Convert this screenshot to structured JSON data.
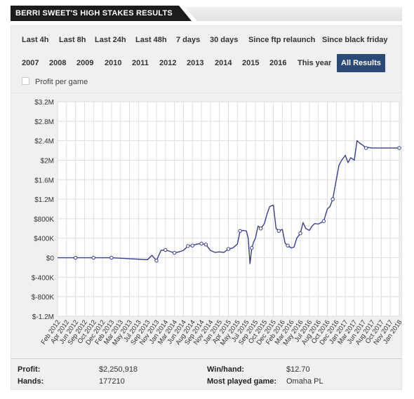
{
  "header": {
    "title": "BERRI SWEET'S HIGH STAKES RESULTS"
  },
  "filters": {
    "row1": [
      "Last 4h",
      "Last 8h",
      "Last 24h",
      "Last 48h",
      "7 days",
      "30 days",
      "Since ftp relaunch",
      "Since black friday"
    ],
    "row2": [
      "2007",
      "2008",
      "2009",
      "2010",
      "2011",
      "2012",
      "2013",
      "2014",
      "2015",
      "2016",
      "This year",
      "All Results"
    ],
    "active": "All Results",
    "profit_per_game_label": "Profit per game",
    "profit_per_game_checked": false
  },
  "stats": {
    "profit_label": "Profit:",
    "profit_value": "$2,250,918",
    "hands_label": "Hands:",
    "hands_value": "177210",
    "winhand_label": "Win/hand:",
    "winhand_value": "$12.70",
    "most_played_label": "Most played game:",
    "most_played_value": "Omaha PL"
  },
  "colors": {
    "line": "#3a3f8f",
    "active_filter": "#2c4a78",
    "header_bg": "#1c1c1c"
  },
  "chart_data": {
    "type": "line",
    "grid": true,
    "ylim": [
      -1200000,
      3200000
    ],
    "y_ticks": [
      3200000,
      2800000,
      2400000,
      2000000,
      1600000,
      1200000,
      800000,
      400000,
      0,
      -400000,
      -800000,
      -1200000
    ],
    "y_tick_labels": [
      "$3.2M",
      "$2.8M",
      "$2.4M",
      "$2M",
      "$1.6M",
      "$1.2M",
      "$800K",
      "$400K",
      "$0",
      "$-400K",
      "$-800K",
      "$-1.2M"
    ],
    "x_tick_labels": [
      "Feb 2012",
      "Apr 2012",
      "Jun 2012",
      "Sep 2012",
      "Oct 2012",
      "Dec 2012",
      "Feb 2013",
      "Mar 2013",
      "May 2013",
      "Jul 2013",
      "Sep 2013",
      "Nov 2013",
      "Jan 2014",
      "Mar 2014",
      "Jun 2014",
      "Aug 2014",
      "Sep 2014",
      "Nov 2014",
      "Jan 2015",
      "Apr 2015",
      "May 2015",
      "Jul 2015",
      "Sep 2015",
      "Oct 2015",
      "Dec 2015",
      "Feb 2016",
      "Mar 2016",
      "May 2016",
      "Jul 2016",
      "Aug 2016",
      "Oct 2016",
      "Dec 2016",
      "Jan 2017",
      "Mar 2017",
      "Jun 2017",
      "Aug 2017",
      "Oct 2017",
      "Nov 2017",
      "Jan 2018"
    ],
    "x": [
      0,
      2,
      4,
      6,
      8,
      9,
      10,
      10.5,
      11,
      11.5,
      12,
      12.5,
      13,
      13.5,
      14,
      14.5,
      15,
      15.5,
      16,
      16.5,
      17,
      17.5,
      18,
      18.5,
      19,
      19.5,
      20,
      20.3,
      20.6,
      21,
      21.2,
      21.4,
      21.6,
      21.8,
      22,
      22.3,
      22.6,
      23,
      23.3,
      23.6,
      24,
      24.3,
      24.6,
      25,
      25.3,
      25.6,
      26,
      26.3,
      26.6,
      27,
      27.3,
      27.6,
      28,
      28.3,
      28.6,
      29,
      29.3,
      29.6,
      30,
      30.3,
      30.6,
      31,
      31.3,
      31.6,
      32,
      32.3,
      32.6,
      33,
      33.3,
      33.6,
      34,
      34.3,
      34.6,
      35,
      35.3,
      35.6,
      36,
      36.3,
      36.6,
      37,
      37.3,
      37.6,
      38
    ],
    "y": [
      0,
      0,
      0,
      0,
      -20000,
      -30000,
      -40000,
      50000,
      -60000,
      150000,
      160000,
      130000,
      100000,
      120000,
      150000,
      240000,
      250000,
      280000,
      290000,
      270000,
      150000,
      110000,
      120000,
      110000,
      180000,
      200000,
      280000,
      550000,
      560000,
      550000,
      400000,
      -120000,
      200000,
      320000,
      400000,
      650000,
      600000,
      700000,
      900000,
      1050000,
      1080000,
      600000,
      550000,
      580000,
      300000,
      250000,
      200000,
      220000,
      400000,
      500000,
      720000,
      600000,
      560000,
      650000,
      700000,
      690000,
      720000,
      750000,
      1000000,
      1050000,
      1200000,
      1600000,
      1900000,
      2000000,
      2100000,
      1950000,
      2050000,
      2000000,
      2400000,
      2350000,
      2300000,
      2250000,
      2260000,
      2250000,
      2250000,
      2250000,
      2250000,
      2250000,
      2250000,
      2250000,
      2250000,
      2250000,
      2250000
    ],
    "markers": [
      1,
      2,
      3,
      8,
      10,
      12,
      15,
      16,
      18,
      19,
      24,
      27,
      32,
      36,
      42,
      45,
      49,
      57,
      60,
      71
    ]
  }
}
